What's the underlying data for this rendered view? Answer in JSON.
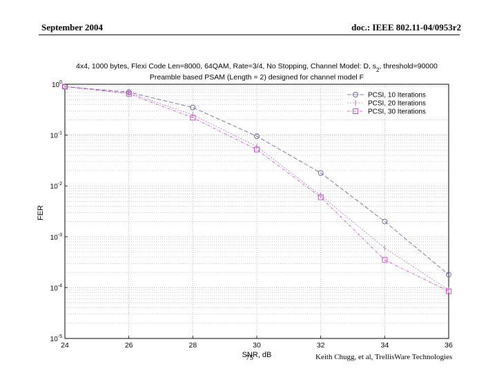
{
  "header": {
    "left": "September 2004",
    "right": "doc.: IEEE 802.11-04/0953r2"
  },
  "footer": {
    "page": "75",
    "right": "Keith Chugg, et al, TrellisWare Technologies"
  },
  "chart_data": {
    "type": "line",
    "title_line1": "4x4, 1000 bytes, Flexi Code Len=8000, 64QAM, Rate=3/4, No Stopping, Channel Model: D, s",
    "title_subscript": "2",
    "title_line1_tail": ", threshold=90000",
    "title_line2": "Preamble based PSAM (Length = 2) designed for channel model F",
    "xlabel": "SNR, dB",
    "ylabel": "FER",
    "xlim": [
      24,
      36
    ],
    "ylim": [
      1e-05,
      1
    ],
    "yscale": "log",
    "grid": true,
    "x_ticks": [
      24,
      26,
      28,
      30,
      32,
      34,
      36
    ],
    "x_tick_labels": [
      "24",
      "26",
      "28",
      "30",
      "32",
      "34",
      "36"
    ],
    "y_ticks": [
      1,
      0.1,
      0.01,
      0.001,
      0.0001,
      1e-05
    ],
    "y_tick_bases": [
      "10",
      "10",
      "10",
      "10",
      "10",
      "10"
    ],
    "y_tick_exponents": [
      "0",
      "-1",
      "-2",
      "-3",
      "-4",
      "-5"
    ],
    "legend_position": "top-right",
    "series": [
      {
        "name": "PCSI, 10 Iterations",
        "marker": "circle",
        "color": "#5a5a8c",
        "dash": "6,3",
        "x": [
          24,
          26,
          28,
          30,
          32,
          34,
          36
        ],
        "y": [
          0.9,
          0.7,
          0.35,
          0.095,
          0.018,
          0.002,
          0.00018
        ]
      },
      {
        "name": "PCSI, 20 Iterations",
        "marker": "plus",
        "color": "#aa7aaa",
        "dash": "2,2",
        "x": [
          24,
          26,
          28,
          30,
          32,
          34,
          36
        ],
        "y": [
          0.9,
          0.68,
          0.25,
          0.06,
          0.0065,
          0.0006,
          9e-05
        ]
      },
      {
        "name": "PCSI, 30 Iterations",
        "marker": "square",
        "color": "#c040c0",
        "dash": "4,2,1,2",
        "x": [
          24,
          26,
          28,
          30,
          32,
          34,
          36
        ],
        "y": [
          0.9,
          0.65,
          0.22,
          0.052,
          0.006,
          0.00035,
          8.5e-05
        ]
      }
    ]
  }
}
